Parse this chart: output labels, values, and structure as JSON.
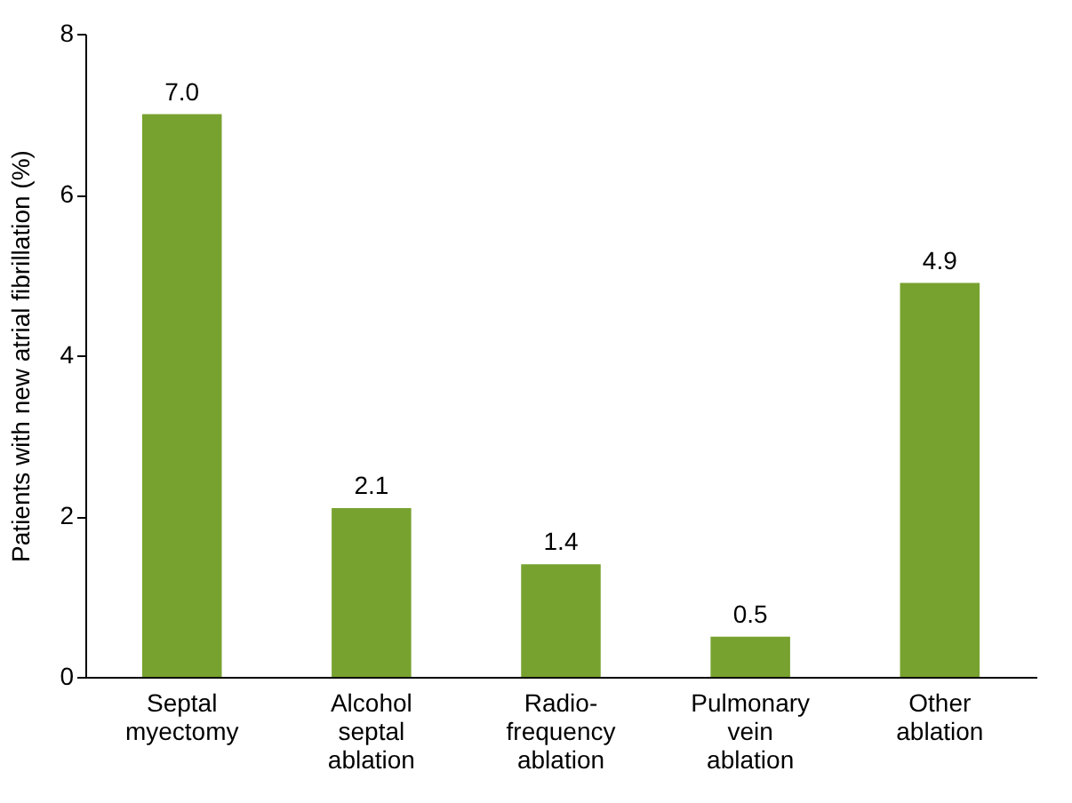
{
  "chart_data": {
    "type": "bar",
    "ylabel": "Patients with new atrial fibrillation (%)",
    "categories": [
      "Septal myectomy",
      "Alcohol septal ablation",
      "Radio-frequency ablation",
      "Pulmonary vein ablation",
      "Other ablation"
    ],
    "values": [
      7.0,
      2.1,
      1.4,
      0.5,
      4.9
    ],
    "value_labels": [
      "7.0",
      "2.1",
      "1.4",
      "0.5",
      "4.9"
    ],
    "color": "#77a22f",
    "ylim": [
      0,
      8
    ],
    "yticks": [
      0,
      2,
      4,
      6,
      8
    ],
    "grid": false
  }
}
